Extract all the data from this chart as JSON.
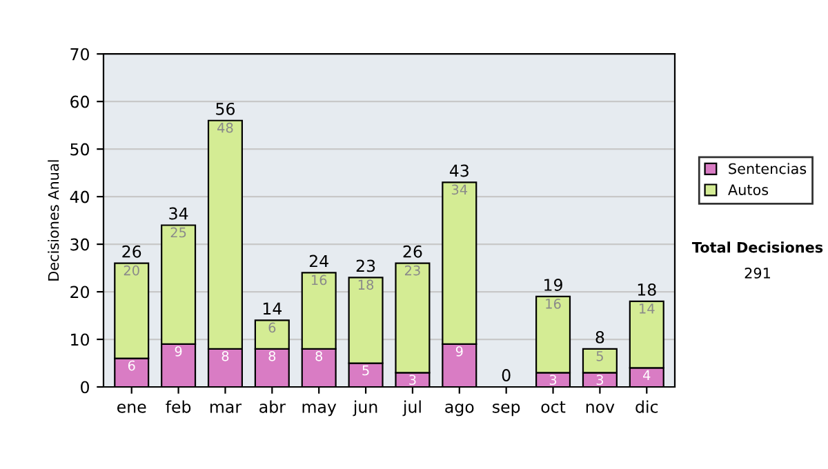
{
  "chart_data": {
    "type": "bar",
    "stacked": true,
    "ylabel": "Decisiones Anual",
    "categories": [
      "ene",
      "feb",
      "mar",
      "abr",
      "may",
      "jun",
      "jul",
      "ago",
      "sep",
      "oct",
      "nov",
      "dic"
    ],
    "series": [
      {
        "name": "Sentencias",
        "color": "#d97cc4",
        "values": [
          6,
          9,
          8,
          8,
          8,
          5,
          3,
          9,
          0,
          3,
          3,
          4
        ],
        "value_labels": [
          "6",
          "9",
          "8",
          "8",
          "8",
          "5",
          "3",
          "9",
          null,
          "3",
          "3",
          "4"
        ]
      },
      {
        "name": "Autos",
        "color": "#d4ec94",
        "values": [
          20,
          25,
          48,
          6,
          16,
          18,
          23,
          34,
          0,
          16,
          5,
          14
        ],
        "value_labels": [
          "20",
          "25",
          "48",
          "6",
          "16",
          "18",
          "23",
          "34",
          null,
          "16",
          "5",
          "14"
        ]
      }
    ],
    "totals": [
      "26",
      "34",
      "56",
      "14",
      "24",
      "23",
      "26",
      "43",
      "0",
      "19",
      "8",
      "18"
    ],
    "ylim": [
      0,
      70
    ],
    "yticks": [
      0,
      10,
      20,
      30,
      40,
      50,
      60,
      70
    ],
    "grid": "y",
    "legend": "right",
    "annotations": [
      "Total Decisiones",
      "291"
    ]
  }
}
